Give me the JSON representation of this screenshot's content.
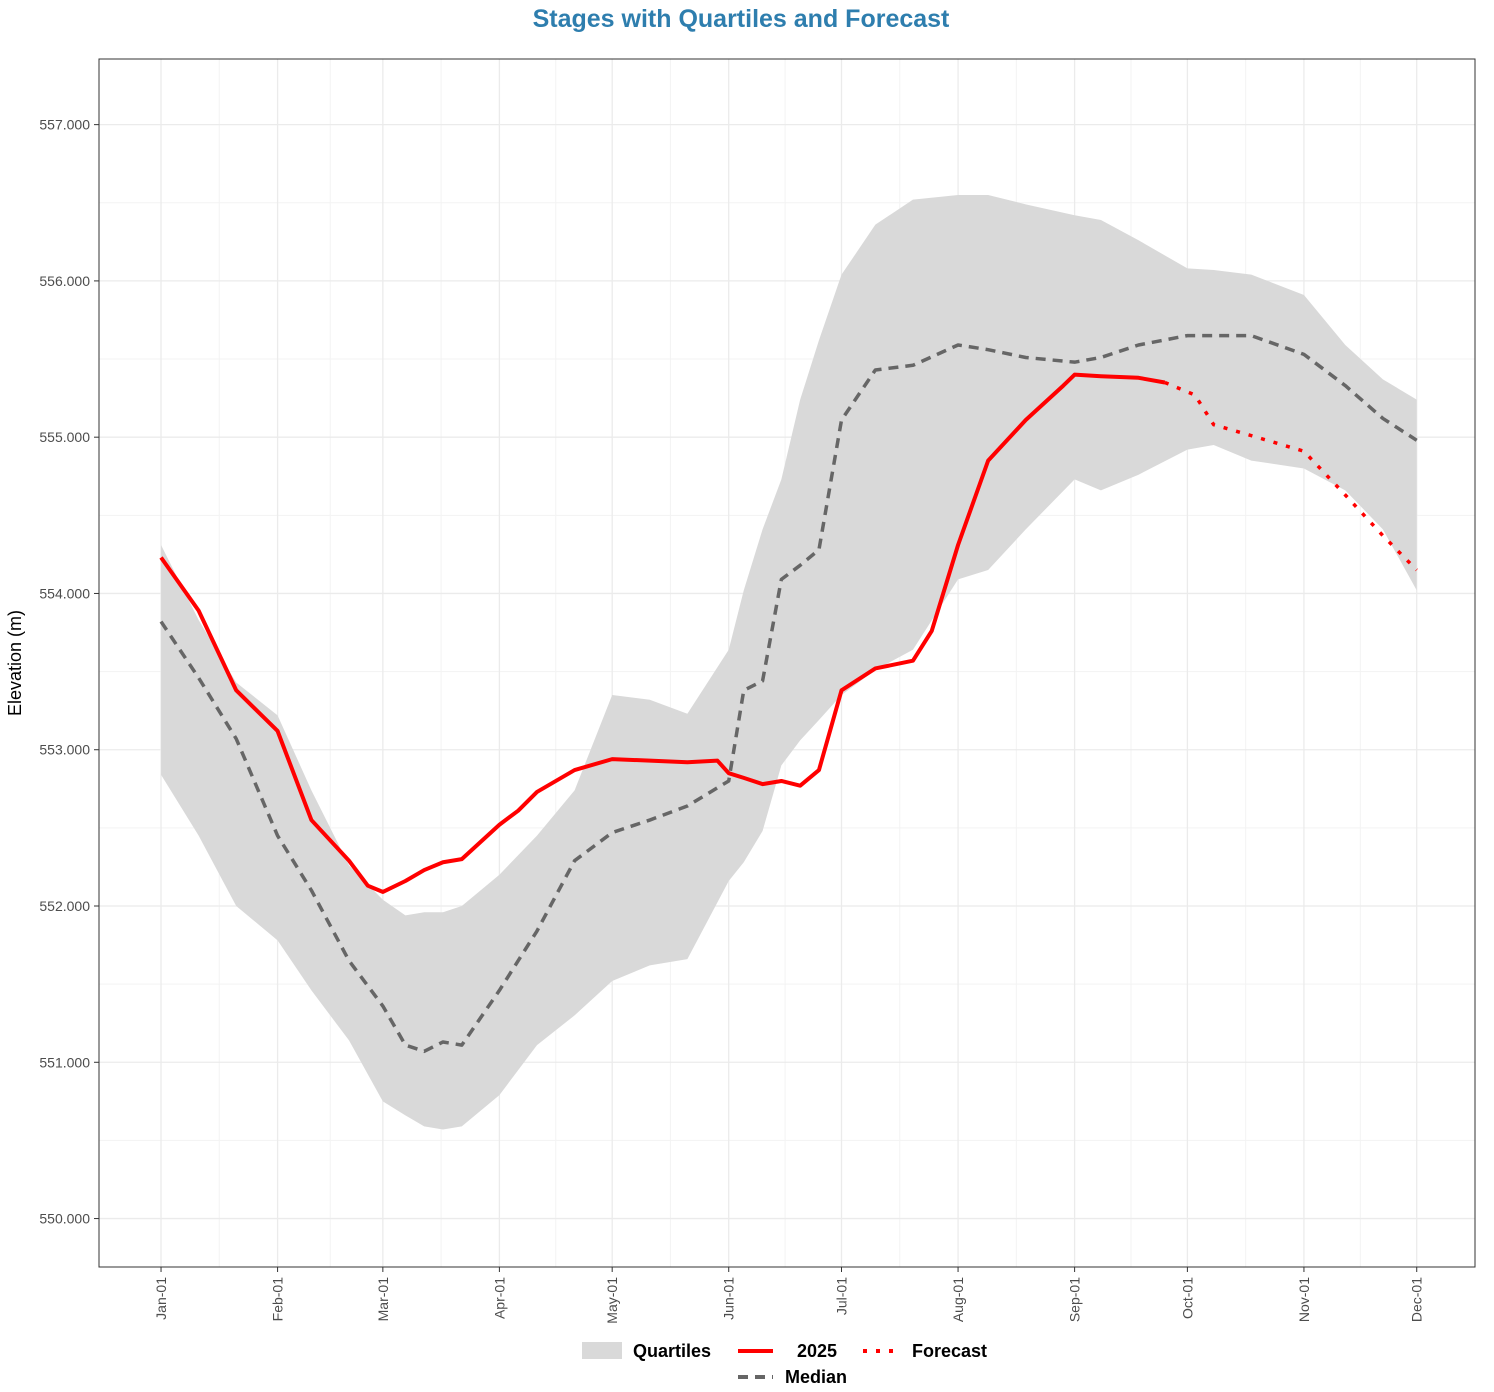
{
  "chart_data": {
    "type": "line",
    "title": "Stages with Quartiles and Forecast",
    "ylabel": "Elevation (m)",
    "grid": true,
    "xlim": [
      -16.5,
      349.5
    ],
    "xticks": [
      {
        "value": 0,
        "label": "Jan-01"
      },
      {
        "value": 31,
        "label": "Feb-01"
      },
      {
        "value": 59,
        "label": "Mar-01"
      },
      {
        "value": 90,
        "label": "Apr-01"
      },
      {
        "value": 120,
        "label": "May-01"
      },
      {
        "value": 151,
        "label": "Jun-01"
      },
      {
        "value": 181,
        "label": "Jul-01"
      },
      {
        "value": 212,
        "label": "Aug-01"
      },
      {
        "value": 243,
        "label": "Sep-01"
      },
      {
        "value": 273,
        "label": "Oct-01"
      },
      {
        "value": 304,
        "label": "Nov-01"
      },
      {
        "value": 334,
        "label": "Dec-01"
      }
    ],
    "ylim": [
      549.69,
      557.42
    ],
    "yticks": [
      {
        "value": 550,
        "label": "550.000"
      },
      {
        "value": 551,
        "label": "551.000"
      },
      {
        "value": 552,
        "label": "552.000"
      },
      {
        "value": 553,
        "label": "553.000"
      },
      {
        "value": 554,
        "label": "554.000"
      },
      {
        "value": 555,
        "label": "555.000"
      },
      {
        "value": 556,
        "label": "556.000"
      },
      {
        "value": 557,
        "label": "557.000"
      }
    ],
    "series": [
      {
        "name": "Quartiles",
        "kind": "band",
        "color": "#d9d9d9",
        "x": [
          0,
          10,
          20,
          31,
          40,
          50,
          59,
          65,
          70,
          75,
          80,
          90,
          100,
          110,
          120,
          130,
          140,
          151,
          155,
          160,
          165,
          170,
          175,
          181,
          190,
          200,
          212,
          220,
          230,
          243,
          250,
          260,
          273,
          280,
          290,
          304,
          315,
          325,
          334
        ],
        "lower": [
          552.84,
          552.45,
          552.0,
          551.78,
          551.46,
          551.14,
          550.75,
          550.66,
          550.59,
          550.57,
          550.59,
          550.79,
          551.11,
          551.3,
          551.52,
          551.62,
          551.66,
          552.16,
          552.28,
          552.48,
          552.9,
          553.06,
          553.19,
          553.35,
          553.51,
          553.64,
          554.09,
          554.15,
          554.41,
          554.73,
          554.66,
          554.76,
          554.92,
          554.95,
          554.85,
          554.8,
          554.66,
          554.41,
          554.02
        ],
        "upper": [
          554.31,
          553.83,
          553.43,
          553.22,
          552.74,
          552.26,
          552.04,
          551.94,
          551.96,
          551.96,
          552.0,
          552.2,
          552.45,
          552.74,
          553.35,
          553.32,
          553.23,
          553.64,
          554.02,
          554.41,
          554.73,
          555.24,
          555.62,
          556.04,
          556.36,
          556.52,
          556.55,
          556.55,
          556.49,
          556.42,
          556.39,
          556.26,
          556.08,
          556.07,
          556.04,
          555.91,
          555.59,
          555.37,
          555.24
        ]
      },
      {
        "name": "2025",
        "kind": "line",
        "linetype": "solid",
        "color": "#ff0000",
        "x": [
          0,
          10,
          20,
          31,
          40,
          50,
          55,
          59,
          65,
          70,
          75,
          80,
          90,
          95,
          100,
          110,
          120,
          130,
          140,
          148,
          151,
          155,
          160,
          165,
          170,
          175,
          181,
          190,
          200,
          205,
          212,
          220,
          230,
          240,
          243,
          250,
          260,
          267
        ],
        "values": [
          554.23,
          553.89,
          553.38,
          553.12,
          552.55,
          552.29,
          552.13,
          552.09,
          552.16,
          552.23,
          552.28,
          552.3,
          552.52,
          552.61,
          552.73,
          552.87,
          552.94,
          552.93,
          552.92,
          552.93,
          552.85,
          552.82,
          552.78,
          552.8,
          552.77,
          552.87,
          553.38,
          553.52,
          553.57,
          553.76,
          554.31,
          554.85,
          555.11,
          555.33,
          555.4,
          555.39,
          555.38,
          555.35
        ]
      },
      {
        "name": "Forecast",
        "kind": "line",
        "linetype": "dotted",
        "color": "#ff0000",
        "x": [
          267,
          275,
          280,
          290,
          304,
          315,
          325,
          334
        ],
        "values": [
          555.35,
          555.27,
          555.08,
          555.01,
          554.91,
          554.63,
          554.37,
          554.15
        ]
      },
      {
        "name": "Median",
        "kind": "line",
        "linetype": "dashed",
        "color": "#666666",
        "x": [
          0,
          10,
          20,
          31,
          40,
          50,
          59,
          65,
          70,
          75,
          80,
          90,
          100,
          110,
          120,
          130,
          140,
          151,
          155,
          160,
          165,
          170,
          175,
          181,
          190,
          200,
          212,
          220,
          230,
          243,
          250,
          260,
          273,
          280,
          290,
          304,
          315,
          325,
          334
        ],
        "values": [
          553.82,
          553.46,
          553.07,
          552.45,
          552.1,
          551.65,
          551.36,
          551.11,
          551.07,
          551.13,
          551.11,
          551.46,
          551.84,
          552.29,
          552.47,
          552.55,
          552.64,
          552.8,
          553.38,
          553.44,
          554.09,
          554.18,
          554.28,
          555.11,
          555.43,
          555.46,
          555.59,
          555.56,
          555.51,
          555.48,
          555.51,
          555.59,
          555.65,
          555.65,
          555.65,
          555.53,
          555.33,
          555.12,
          554.98
        ]
      }
    ]
  }
}
